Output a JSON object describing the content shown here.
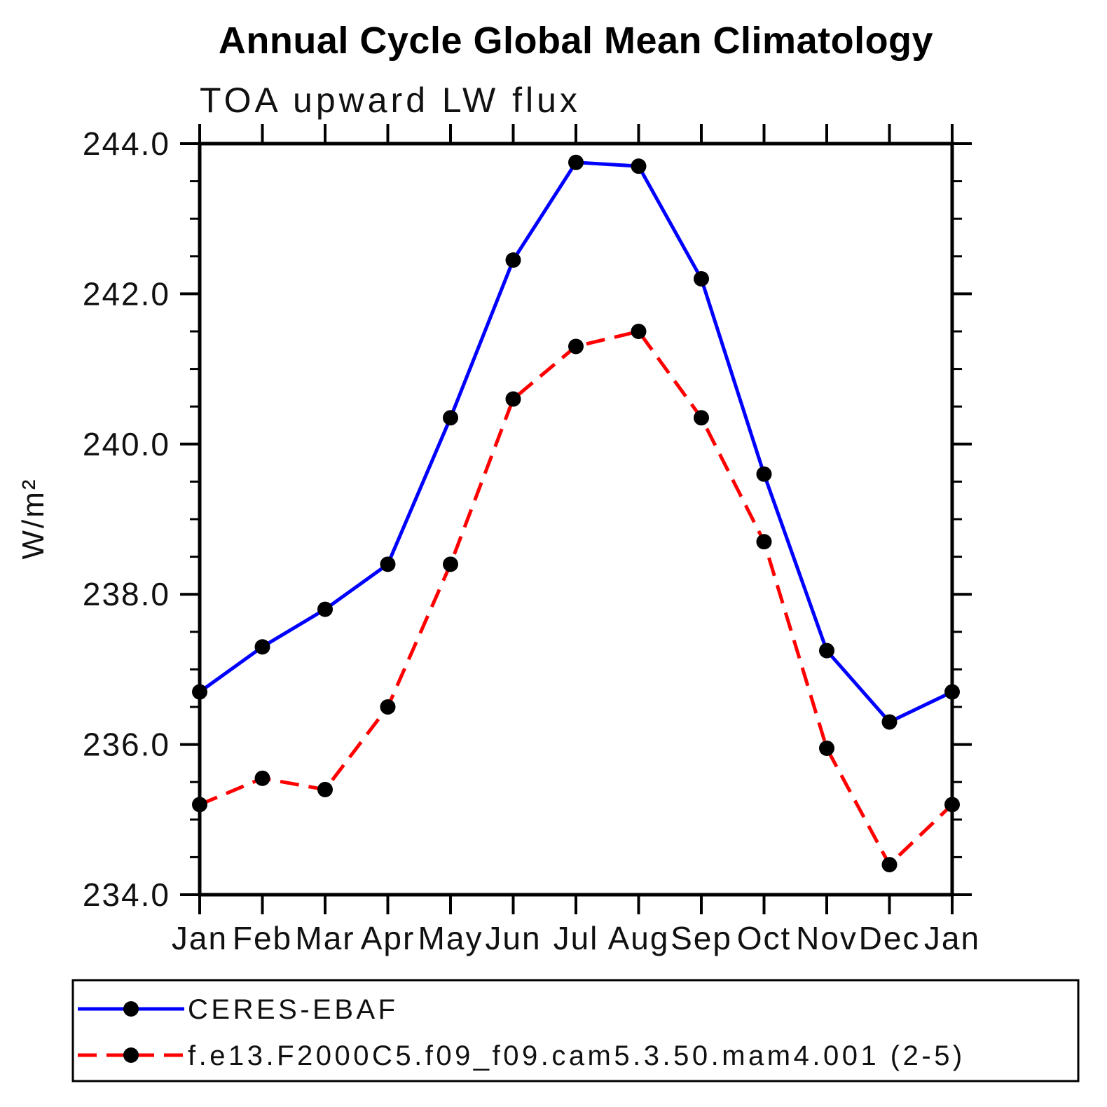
{
  "title": "Annual Cycle Global Mean Climatology",
  "subtitle": "TOA upward LW flux",
  "ylabel": "W/m²",
  "colors": {
    "series1": "#0000ff",
    "series2": "#ff0000",
    "marker": "#000000",
    "axis": "#000000",
    "background": "#ffffff"
  },
  "legend": {
    "position": "bottom",
    "entries": [
      {
        "label": "CERES-EBAF",
        "color": "#0000ff",
        "style": "solid",
        "marker": "circle"
      },
      {
        "label": "f.e13.F2000C5.f09_f09.cam5.3.50.mam4.001 (2-5)",
        "color": "#ff0000",
        "style": "dashed",
        "marker": "circle"
      }
    ]
  },
  "chart_data": {
    "type": "line",
    "title": "Annual Cycle Global Mean Climatology",
    "subtitle": "TOA upward LW flux",
    "xlabel": "",
    "ylabel": "W/m²",
    "categories": [
      "Jan",
      "Feb",
      "Mar",
      "Apr",
      "May",
      "Jun",
      "Jul",
      "Aug",
      "Sep",
      "Oct",
      "Nov",
      "Dec",
      "Jan"
    ],
    "series": [
      {
        "name": "CERES-EBAF",
        "color": "#0000ff",
        "style": "solid",
        "marker": "circle",
        "values": [
          236.7,
          237.3,
          237.8,
          238.4,
          240.35,
          242.45,
          243.75,
          243.7,
          242.2,
          239.6,
          237.25,
          236.3,
          236.7
        ]
      },
      {
        "name": "f.e13.F2000C5.f09_f09.cam5.3.50.mam4.001 (2-5)",
        "color": "#ff0000",
        "style": "dashed",
        "marker": "circle",
        "values": [
          235.2,
          235.55,
          235.4,
          236.5,
          238.4,
          240.6,
          241.3,
          241.5,
          240.35,
          238.7,
          235.95,
          234.4,
          235.2
        ]
      }
    ],
    "ylim": [
      234.0,
      244.0
    ],
    "ytick_major_interval": 2.0,
    "ytick_minor_interval": 0.5,
    "ytick_labels": [
      "234.0",
      "236.0",
      "238.0",
      "240.0",
      "242.0",
      "244.0"
    ],
    "grid": false,
    "legend_position": "bottom"
  }
}
